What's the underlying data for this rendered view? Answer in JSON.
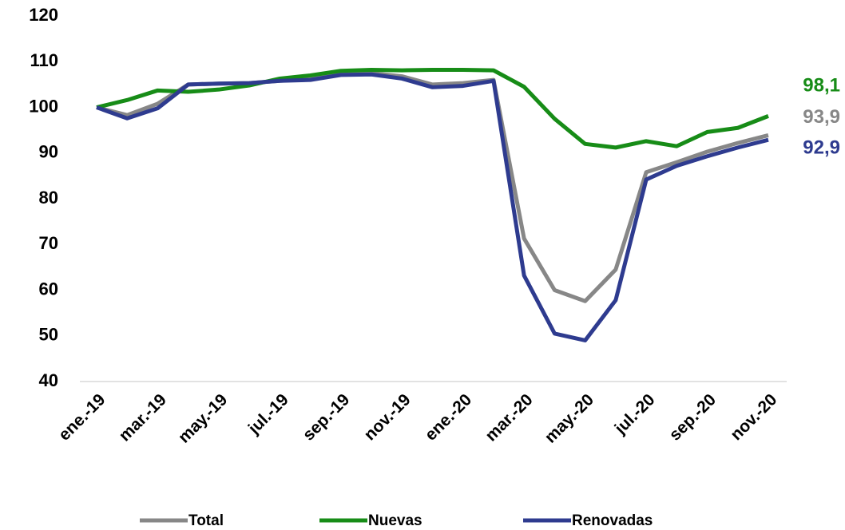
{
  "chart_data": {
    "type": "line",
    "categories": [
      "ene.-19",
      null,
      "mar.-19",
      null,
      "may.-19",
      null,
      "jul.-19",
      null,
      "sep.-19",
      null,
      "nov.-19",
      null,
      "ene.-20",
      null,
      "mar.-20",
      null,
      "may.-20",
      null,
      "jul.-20",
      null,
      "sep.-20",
      null,
      "nov.-20"
    ],
    "series": [
      {
        "name": "Total",
        "color": "#878787",
        "values": [
          100,
          98.3,
          100.8,
          105,
          105.2,
          105.3,
          105.8,
          106.2,
          107.3,
          107.5,
          106.8,
          105,
          105.3,
          106,
          71.3,
          60,
          57.6,
          64.5,
          85.8,
          88,
          90.3,
          92.2,
          93.9
        ],
        "value_labels": [
          null,
          null,
          null,
          null,
          null,
          null,
          null,
          null,
          null,
          null,
          null,
          null,
          null,
          null,
          null,
          null,
          null,
          null,
          null,
          null,
          null,
          null,
          "93,9"
        ]
      },
      {
        "name": "Nuevas",
        "color": "#178c17",
        "values": [
          100,
          101.6,
          103.7,
          103.4,
          103.9,
          104.8,
          106.3,
          107,
          108,
          108.2,
          108.1,
          108.2,
          108.2,
          108.1,
          104.5,
          97.5,
          92,
          91.2,
          92.6,
          91.5,
          94.6,
          95.5,
          98.1
        ],
        "value_labels": [
          null,
          null,
          null,
          null,
          null,
          null,
          null,
          null,
          null,
          null,
          null,
          null,
          null,
          null,
          null,
          null,
          null,
          null,
          null,
          null,
          null,
          null,
          "98,1"
        ]
      },
      {
        "name": "Renovadas",
        "color": "#2e3b8f",
        "values": [
          100,
          97.6,
          99.8,
          105,
          105.2,
          105.3,
          105.8,
          106,
          107.1,
          107.2,
          106.3,
          104.4,
          104.7,
          105.8,
          63.2,
          50.5,
          49,
          57.8,
          84.2,
          87.2,
          89.3,
          91.2,
          92.9
        ],
        "value_labels": [
          null,
          null,
          null,
          null,
          null,
          null,
          null,
          null,
          null,
          null,
          null,
          null,
          null,
          null,
          null,
          null,
          null,
          null,
          null,
          null,
          null,
          null,
          "92,9"
        ]
      }
    ],
    "ylim": [
      40,
      120
    ],
    "yticks": [
      40,
      50,
      60,
      70,
      80,
      90,
      100,
      110,
      120
    ],
    "grid": false
  }
}
